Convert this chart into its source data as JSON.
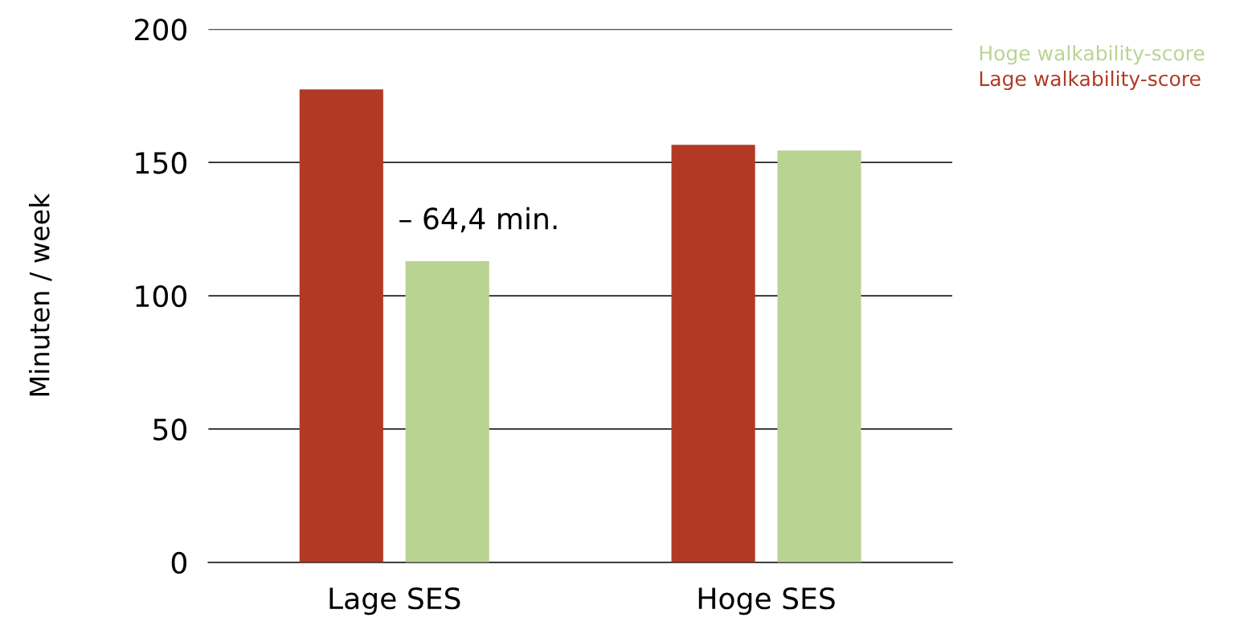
{
  "chart_data": {
    "type": "bar",
    "ylabel": "Minuten / week",
    "categories": [
      "Lage SES",
      "Hoge SES"
    ],
    "series": [
      {
        "name": "Lage walkability-score",
        "color": "#b23a25",
        "values": [
          177.4,
          156.6
        ]
      },
      {
        "name": "Hoge walkability-score",
        "color": "#b9d492",
        "values": [
          113.0,
          154.5
        ]
      }
    ],
    "ylim": [
      0,
      200
    ],
    "yticks": [
      0,
      50,
      100,
      150,
      200
    ],
    "grid": "y",
    "legend": "top right",
    "annotations": [
      "– 64,4 min."
    ]
  }
}
